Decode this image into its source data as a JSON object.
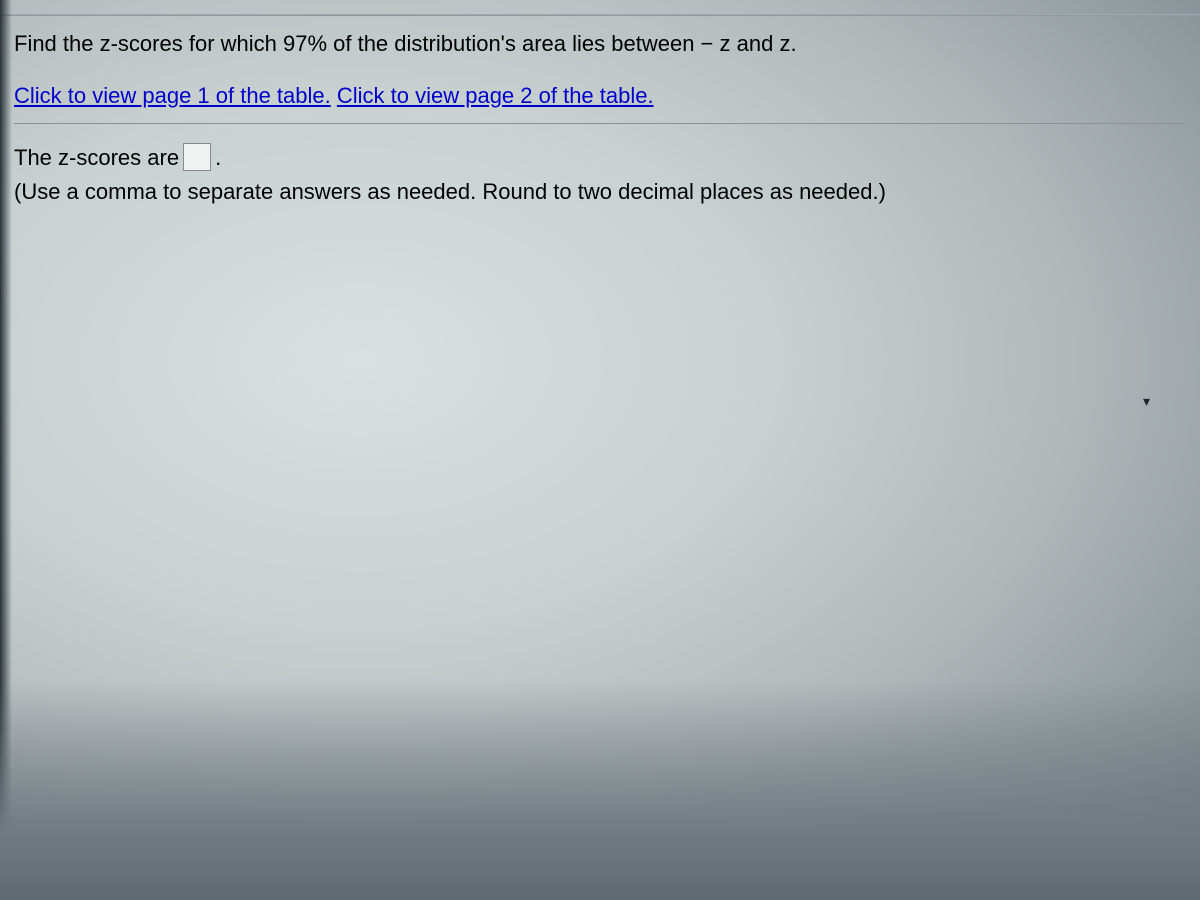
{
  "question": {
    "prompt_prefix": "Find the z-scores for which 97% of the distribution's area lies between ",
    "prompt_suffix": "z and z."
  },
  "links": {
    "page1": "Click to view page 1 of the table.",
    "page2": "Click to view page 2 of the table."
  },
  "answer": {
    "prefix": "The z-scores are",
    "suffix": ".",
    "input_value": ""
  },
  "instruction": "(Use a comma to separate answers as needed. Round to two decimal places as needed.)",
  "colors": {
    "link": "#0000cc",
    "text": "#000000",
    "divider": "#8a9298"
  }
}
